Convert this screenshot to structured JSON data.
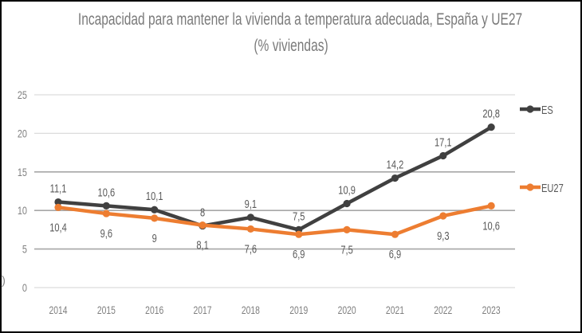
{
  "chart_data": {
    "type": "line",
    "title": "Incapacidad para mantener la vivienda a temperatura adecuada, España y UE27",
    "subtitle": "(% viviendas)",
    "xlabel": "",
    "ylabel": "",
    "categories": [
      "2014",
      "2015",
      "2016",
      "2017",
      "2018",
      "2019",
      "2020",
      "2021",
      "2022",
      "2023"
    ],
    "ylim": [
      0,
      25
    ],
    "yticks": [
      "0",
      "5",
      "10",
      "15",
      "20",
      "25"
    ],
    "grid": true,
    "legend_position": "right",
    "series": [
      {
        "name": "ES",
        "color": "#404040",
        "label_position": "above",
        "values": [
          11.1,
          10.6,
          10.1,
          8,
          9.1,
          7.5,
          10.9,
          14.2,
          17.1,
          20.8
        ],
        "labels": [
          "11,1",
          "10,6",
          "10,1",
          "8",
          "9,1",
          "7,5",
          "10,9",
          "14,2",
          "17,1",
          "20,8"
        ]
      },
      {
        "name": "EU27",
        "color": "#ED7D31",
        "label_position": "below",
        "values": [
          10.4,
          9.6,
          9,
          8.1,
          7.6,
          6.9,
          7.5,
          6.9,
          9.3,
          10.6
        ],
        "labels": [
          "10,4",
          "9,6",
          "9",
          "8,1",
          "7,6",
          "6,9",
          "7,5",
          "6,9",
          "9,3",
          "10,6"
        ]
      }
    ]
  },
  "page": {
    "title_line1": "Incapacidad para mantener la vivienda a temperatura adecuada, España y UE27",
    "title_line2": "(% viviendas)",
    "stray_glyph": ")"
  }
}
